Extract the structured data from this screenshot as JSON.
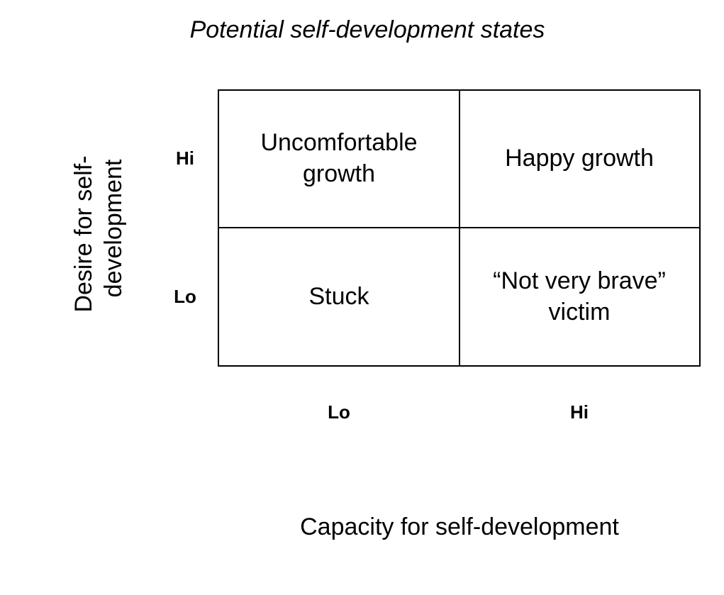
{
  "title": "Potential self-development states",
  "y_axis": {
    "label_lines": [
      "Desire for self-",
      "development"
    ]
  },
  "x_axis": {
    "label": "Capacity for self-development"
  },
  "row_labels": [
    "Hi",
    "Lo"
  ],
  "column_labels": [
    "Lo",
    "Hi"
  ],
  "cells": [
    [
      {
        "lines": [
          "Uncomfortable",
          "growth"
        ]
      },
      {
        "lines": [
          "Happy growth"
        ]
      }
    ],
    [
      {
        "lines": [
          "Stuck"
        ]
      },
      {
        "lines": [
          "“Not very brave”",
          "victim"
        ]
      }
    ]
  ]
}
